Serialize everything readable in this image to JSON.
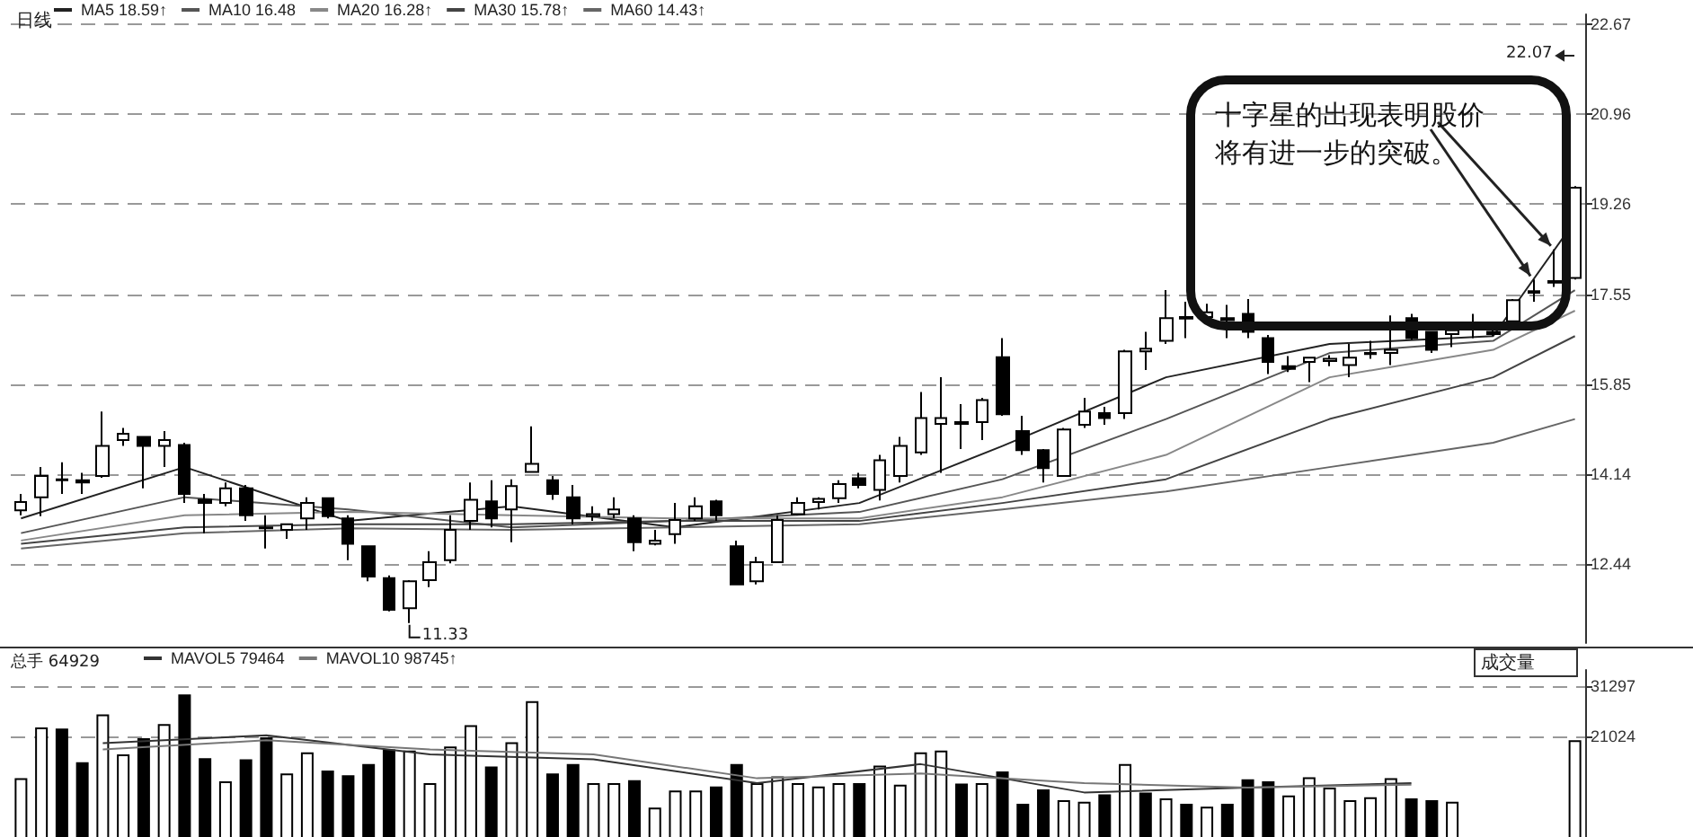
{
  "chart_data": [
    {
      "type": "candlestick",
      "title": "日线",
      "legend": "top left",
      "grid": "y",
      "tick_labels": "y",
      "ylim": [
        10.95,
        22.85
      ],
      "yticks": [
        12.44,
        14.14,
        15.85,
        17.55,
        19.26,
        20.96,
        22.67
      ],
      "annotations": [
        "十字星的出现表明股价将有进一步的突破。",
        "22.07",
        "11.33"
      ],
      "categories": [
        null,
        null,
        null,
        null,
        null,
        null,
        null,
        null,
        null,
        null,
        null,
        null,
        null,
        null,
        null,
        null,
        null,
        null,
        null,
        null,
        null,
        null,
        null,
        null,
        null,
        null,
        null,
        null,
        null,
        null,
        null,
        null,
        null,
        null,
        null,
        null,
        null,
        null,
        null,
        null,
        null,
        null,
        null,
        null,
        null,
        null,
        null,
        null,
        null,
        null,
        null,
        null,
        null,
        null,
        null,
        null,
        null,
        null,
        null,
        null,
        null,
        null,
        null,
        null,
        null,
        null,
        null,
        null,
        null,
        null,
        null,
        null,
        null,
        null,
        null,
        null,
        null
      ],
      "series": [
        {
          "color": "#000000",
          "ohlc": [
            [
              13.46,
              13.77,
              13.37,
              13.62
            ],
            [
              13.71,
              14.28,
              13.35,
              14.11
            ],
            [
              14.03,
              14.37,
              13.77,
              14.05
            ],
            [
              14.03,
              14.17,
              13.77,
              13.99
            ],
            [
              14.11,
              15.33,
              14.08,
              14.68
            ],
            [
              14.79,
              15.02,
              14.68,
              14.91
            ],
            [
              14.85,
              14.87,
              13.88,
              14.68
            ],
            [
              14.68,
              14.96,
              14.28,
              14.79
            ],
            [
              14.7,
              14.74,
              13.6,
              13.77
            ],
            [
              13.66,
              13.77,
              13.03,
              13.6
            ],
            [
              13.6,
              13.99,
              13.54,
              13.88
            ],
            [
              13.88,
              13.94,
              13.26,
              13.37
            ],
            [
              13.14,
              13.37,
              12.74,
              13.12
            ],
            [
              13.09,
              13.2,
              12.92,
              13.2
            ],
            [
              13.31,
              13.71,
              13.09,
              13.6
            ],
            [
              13.69,
              13.71,
              13.31,
              13.35
            ],
            [
              13.31,
              13.37,
              12.52,
              12.83
            ],
            [
              12.78,
              12.8,
              12.12,
              12.21
            ],
            [
              12.18,
              12.23,
              11.55,
              11.58
            ],
            [
              11.61,
              12.14,
              11.33,
              12.12
            ],
            [
              12.14,
              12.69,
              12.01,
              12.48
            ],
            [
              12.52,
              13.37,
              12.46,
              13.09
            ],
            [
              13.26,
              13.99,
              13.09,
              13.66
            ],
            [
              13.63,
              14.03,
              13.14,
              13.31
            ],
            [
              13.48,
              14.05,
              12.86,
              13.92
            ],
            [
              14.19,
              15.05,
              14.19,
              14.34
            ],
            [
              14.03,
              14.11,
              13.66,
              13.77
            ],
            [
              13.71,
              13.94,
              13.2,
              13.31
            ],
            [
              13.35,
              13.54,
              13.26,
              13.39
            ],
            [
              13.39,
              13.71,
              13.31,
              13.48
            ],
            [
              13.31,
              13.37,
              12.69,
              12.86
            ],
            [
              12.83,
              13.09,
              12.8,
              12.89
            ],
            [
              13.01,
              13.6,
              12.83,
              13.28
            ],
            [
              13.31,
              13.71,
              13.26,
              13.54
            ],
            [
              13.63,
              13.66,
              13.26,
              13.37
            ],
            [
              12.78,
              12.89,
              12.06,
              12.06
            ],
            [
              12.12,
              12.58,
              12.06,
              12.48
            ],
            [
              12.48,
              13.37,
              12.48,
              13.28
            ],
            [
              13.39,
              13.71,
              13.37,
              13.6
            ],
            [
              13.62,
              13.71,
              13.48,
              13.68
            ],
            [
              13.69,
              14.03,
              13.6,
              13.96
            ],
            [
              14.07,
              14.17,
              13.88,
              13.94
            ],
            [
              13.85,
              14.51,
              13.65,
              14.41
            ],
            [
              14.11,
              14.85,
              13.99,
              14.68
            ],
            [
              14.56,
              15.7,
              14.51,
              15.21
            ],
            [
              15.1,
              15.98,
              14.17,
              15.21
            ],
            [
              15.1,
              15.47,
              14.62,
              15.13
            ],
            [
              15.13,
              15.59,
              14.79,
              15.55
            ],
            [
              16.36,
              16.72,
              15.25,
              15.28
            ],
            [
              14.96,
              15.25,
              14.51,
              14.6
            ],
            [
              14.6,
              14.62,
              13.99,
              14.26
            ],
            [
              14.11,
              15.02,
              14.11,
              14.99
            ],
            [
              15.08,
              15.59,
              15.02,
              15.33
            ],
            [
              15.3,
              15.42,
              15.08,
              15.21
            ],
            [
              15.3,
              16.5,
              15.19,
              16.47
            ],
            [
              16.47,
              16.84,
              16.12,
              16.52
            ],
            [
              16.67,
              17.63,
              16.61,
              17.1
            ],
            [
              17.09,
              17.41,
              16.72,
              17.12
            ],
            [
              17.12,
              17.37,
              17.01,
              17.21
            ],
            [
              17.1,
              17.35,
              16.72,
              17.06
            ],
            [
              17.18,
              17.46,
              16.72,
              16.84
            ],
            [
              16.72,
              16.78,
              16.04,
              16.27
            ],
            [
              16.19,
              16.38,
              16.08,
              16.14
            ],
            [
              16.27,
              16.35,
              15.89,
              16.35
            ],
            [
              16.29,
              16.4,
              16.19,
              16.33
            ],
            [
              16.21,
              16.61,
              15.98,
              16.35
            ],
            [
              16.42,
              16.67,
              16.33,
              16.44
            ],
            [
              16.44,
              17.15,
              16.21,
              16.5
            ],
            [
              17.1,
              17.18,
              16.69,
              16.72
            ],
            [
              16.84,
              16.84,
              16.44,
              16.5
            ],
            [
              16.8,
              17.01,
              16.55,
              16.87
            ],
            [
              16.89,
              17.18,
              16.72,
              16.92
            ],
            [
              16.84,
              16.95,
              16.76,
              16.8
            ],
            [
              17.04,
              17.46,
              17.01,
              17.44
            ],
            [
              17.58,
              17.83,
              17.41,
              17.61
            ],
            [
              17.77,
              18.4,
              17.69,
              17.8
            ],
            [
              17.86,
              19.6,
              17.83,
              19.57
            ]
          ]
        },
        {
          "type": "line",
          "name": "MA5 18.59↑",
          "color": "#222222",
          "values": [
            13.31,
            null,
            null,
            null,
            null,
            null,
            null,
            null,
            14.28,
            null,
            null,
            null,
            null,
            null,
            null,
            null,
            13.26,
            null,
            null,
            null,
            null,
            null,
            null,
            null,
            13.54,
            null,
            null,
            null,
            null,
            null,
            null,
            null,
            13.14,
            null,
            null,
            null,
            null,
            null,
            null,
            null,
            null,
            13.6,
            null,
            null,
            null,
            null,
            null,
            null,
            14.68,
            null,
            null,
            null,
            null,
            null,
            null,
            null,
            15.98,
            null,
            null,
            null,
            null,
            null,
            null,
            null,
            16.61,
            null,
            null,
            null,
            null,
            null,
            null,
            null,
            16.76,
            null,
            null,
            null,
            18.94
          ]
        },
        {
          "type": "line",
          "name": "MA10 16.48",
          "color": "#555555",
          "values": [
            13.03,
            null,
            null,
            null,
            null,
            null,
            null,
            null,
            13.71,
            null,
            null,
            null,
            null,
            null,
            null,
            null,
            13.48,
            null,
            null,
            null,
            null,
            null,
            null,
            null,
            13.14,
            null,
            null,
            null,
            null,
            null,
            null,
            null,
            13.26,
            null,
            null,
            null,
            null,
            null,
            null,
            null,
            null,
            13.43,
            null,
            null,
            null,
            null,
            null,
            null,
            14.05,
            null,
            null,
            null,
            null,
            null,
            null,
            null,
            15.19,
            null,
            null,
            null,
            null,
            null,
            null,
            null,
            16.44,
            null,
            null,
            null,
            null,
            null,
            null,
            null,
            16.67,
            null,
            null,
            null,
            17.63
          ]
        },
        {
          "type": "line",
          "name": "MA20 16.28↑",
          "color": "#888888",
          "values": [
            12.89,
            null,
            null,
            null,
            null,
            null,
            null,
            null,
            13.37,
            null,
            null,
            null,
            null,
            null,
            null,
            null,
            13.43,
            null,
            null,
            null,
            null,
            null,
            null,
            null,
            13.37,
            null,
            null,
            null,
            null,
            null,
            null,
            null,
            13.31,
            null,
            null,
            null,
            null,
            null,
            null,
            null,
            null,
            13.31,
            null,
            null,
            null,
            null,
            null,
            null,
            13.71,
            null,
            null,
            null,
            null,
            null,
            null,
            null,
            14.51,
            null,
            null,
            null,
            null,
            null,
            null,
            null,
            15.98,
            null,
            null,
            null,
            null,
            null,
            null,
            null,
            16.5,
            null,
            null,
            null,
            17.24
          ]
        },
        {
          "type": "line",
          "name": "MA30 15.78↑",
          "color": "#444444",
          "values": [
            12.83,
            null,
            null,
            null,
            null,
            null,
            null,
            null,
            13.14,
            null,
            null,
            null,
            null,
            null,
            null,
            null,
            13.2,
            null,
            null,
            null,
            null,
            null,
            null,
            null,
            13.2,
            null,
            null,
            null,
            null,
            null,
            null,
            null,
            13.26,
            null,
            null,
            null,
            null,
            null,
            null,
            null,
            null,
            13.26,
            null,
            null,
            null,
            null,
            null,
            null,
            13.6,
            null,
            null,
            null,
            null,
            null,
            null,
            null,
            14.05,
            null,
            null,
            null,
            null,
            null,
            null,
            null,
            15.19,
            null,
            null,
            null,
            null,
            null,
            null,
            null,
            15.98,
            null,
            null,
            null,
            16.76
          ]
        },
        {
          "type": "line",
          "name": "MA60 14.43↑",
          "color": "#666666",
          "values": [
            12.74,
            null,
            null,
            null,
            null,
            null,
            null,
            null,
            13.03,
            null,
            null,
            null,
            null,
            null,
            null,
            null,
            13.12,
            null,
            null,
            null,
            null,
            null,
            null,
            null,
            13.09,
            null,
            null,
            null,
            null,
            null,
            null,
            null,
            13.14,
            null,
            null,
            null,
            null,
            null,
            null,
            null,
            null,
            13.2,
            null,
            null,
            null,
            null,
            null,
            null,
            13.48,
            null,
            null,
            null,
            null,
            null,
            null,
            null,
            13.82,
            null,
            null,
            null,
            null,
            null,
            null,
            null,
            14.28,
            null,
            null,
            null,
            null,
            null,
            null,
            null,
            14.74,
            null,
            null,
            null,
            15.19
          ]
        }
      ]
    },
    {
      "type": "bar",
      "legend": "top left",
      "grid": "y",
      "tick_labels": "y",
      "ylim": [
        0,
        34600
      ],
      "yticks": [
        21024,
        31297
      ],
      "annotations": [
        "总手 64929",
        "成交量"
      ],
      "categories": [
        null,
        null,
        null,
        null,
        null,
        null,
        null,
        null,
        null,
        null,
        null,
        null,
        null,
        null,
        null,
        null,
        null,
        null,
        null,
        null,
        null,
        null,
        null,
        null,
        null,
        null,
        null,
        null,
        null,
        null,
        null,
        null,
        null,
        null,
        null,
        null,
        null,
        null,
        null,
        null,
        null,
        null,
        null,
        null,
        null,
        null,
        null,
        null,
        null,
        null,
        null,
        null,
        null,
        null,
        null,
        null,
        null,
        null,
        null,
        null,
        null,
        null,
        null,
        null,
        null,
        null,
        null,
        null,
        null,
        null,
        null,
        null,
        null,
        null,
        null,
        null,
        null
      ],
      "series": [
        {
          "values": [
            12400,
            22800,
            22600,
            15700,
            25500,
            17300,
            20600,
            23500,
            29600,
            16500,
            11800,
            16300,
            20800,
            13400,
            17700,
            14000,
            13000,
            15300,
            18300,
            18100,
            11400,
            18900,
            23300,
            14800,
            19800,
            28200,
            13400,
            15300,
            11400,
            11400,
            12000,
            6400,
            9900,
            9900,
            10700,
            15300,
            11400,
            12800,
            11400,
            10700,
            11400,
            11400,
            15000,
            11100,
            17700,
            18100,
            11300,
            11400,
            13800,
            7200,
            10100,
            7900,
            7600,
            9100,
            15300,
            9500,
            8300,
            7200,
            6600,
            7200,
            12200,
            11800,
            8900,
            12600,
            10500,
            7900,
            8500,
            12400,
            8300,
            7900,
            7600,
            null,
            null,
            null,
            null,
            null,
            20200
          ],
          "colors": [
            "#ffffff",
            "#ffffff",
            "#000000",
            "#000000",
            "#ffffff",
            "#ffffff",
            "#000000",
            "#ffffff",
            "#000000",
            "#000000",
            "#ffffff",
            "#000000",
            "#000000",
            "#ffffff",
            "#ffffff",
            "#000000",
            "#000000",
            "#000000",
            "#000000",
            "#ffffff",
            "#ffffff",
            "#ffffff",
            "#ffffff",
            "#000000",
            "#ffffff",
            "#ffffff",
            "#000000",
            "#000000",
            "#ffffff",
            "#ffffff",
            "#000000",
            "#ffffff",
            "#ffffff",
            "#ffffff",
            "#000000",
            "#000000",
            "#ffffff",
            "#ffffff",
            "#ffffff",
            "#ffffff",
            "#ffffff",
            "#000000",
            "#ffffff",
            "#ffffff",
            "#ffffff",
            "#ffffff",
            "#000000",
            "#ffffff",
            "#000000",
            "#000000",
            "#000000",
            "#ffffff",
            "#ffffff",
            "#000000",
            "#ffffff",
            "#000000",
            "#ffffff",
            "#000000",
            "#ffffff",
            "#000000",
            "#000000",
            "#000000",
            "#ffffff",
            "#ffffff",
            "#ffffff",
            "#ffffff",
            "#ffffff",
            "#ffffff",
            "#000000",
            "#000000",
            "#ffffff",
            "#ffffff",
            "#ffffff",
            "#ffffff",
            "#ffffff",
            "#ffffff",
            "#ffffff"
          ]
        },
        {
          "type": "line",
          "name": "MAVOL5 79464",
          "color": "#333333",
          "values": [
            null,
            null,
            null,
            null,
            19600,
            null,
            null,
            null,
            null,
            null,
            null,
            null,
            21200,
            null,
            null,
            null,
            null,
            null,
            null,
            null,
            17300,
            null,
            null,
            null,
            null,
            null,
            null,
            null,
            16300,
            null,
            null,
            null,
            null,
            null,
            null,
            null,
            11400,
            null,
            null,
            null,
            null,
            null,
            null,
            null,
            15300,
            null,
            null,
            null,
            null,
            null,
            null,
            null,
            9500,
            null,
            null,
            null,
            null,
            null,
            null,
            null,
            10500,
            null,
            null,
            null,
            null,
            null,
            null,
            null,
            11400,
            null,
            null,
            null,
            null,
            null,
            null,
            null,
            null
          ]
        },
        {
          "type": "line",
          "name": "MAVOL10 98745↑",
          "color": "#777777",
          "values": [
            null,
            null,
            null,
            null,
            18300,
            null,
            null,
            null,
            null,
            null,
            null,
            null,
            20200,
            null,
            null,
            null,
            null,
            null,
            null,
            null,
            18300,
            null,
            null,
            null,
            null,
            null,
            null,
            null,
            17300,
            null,
            null,
            null,
            null,
            null,
            null,
            null,
            12400,
            null,
            null,
            null,
            null,
            null,
            null,
            null,
            13400,
            null,
            null,
            null,
            null,
            null,
            null,
            null,
            11400,
            null,
            null,
            null,
            null,
            null,
            null,
            null,
            10500,
            null,
            null,
            null,
            null,
            null,
            null,
            null,
            11100,
            null,
            null,
            null,
            null,
            null,
            null,
            null,
            null
          ]
        }
      ]
    }
  ]
}
